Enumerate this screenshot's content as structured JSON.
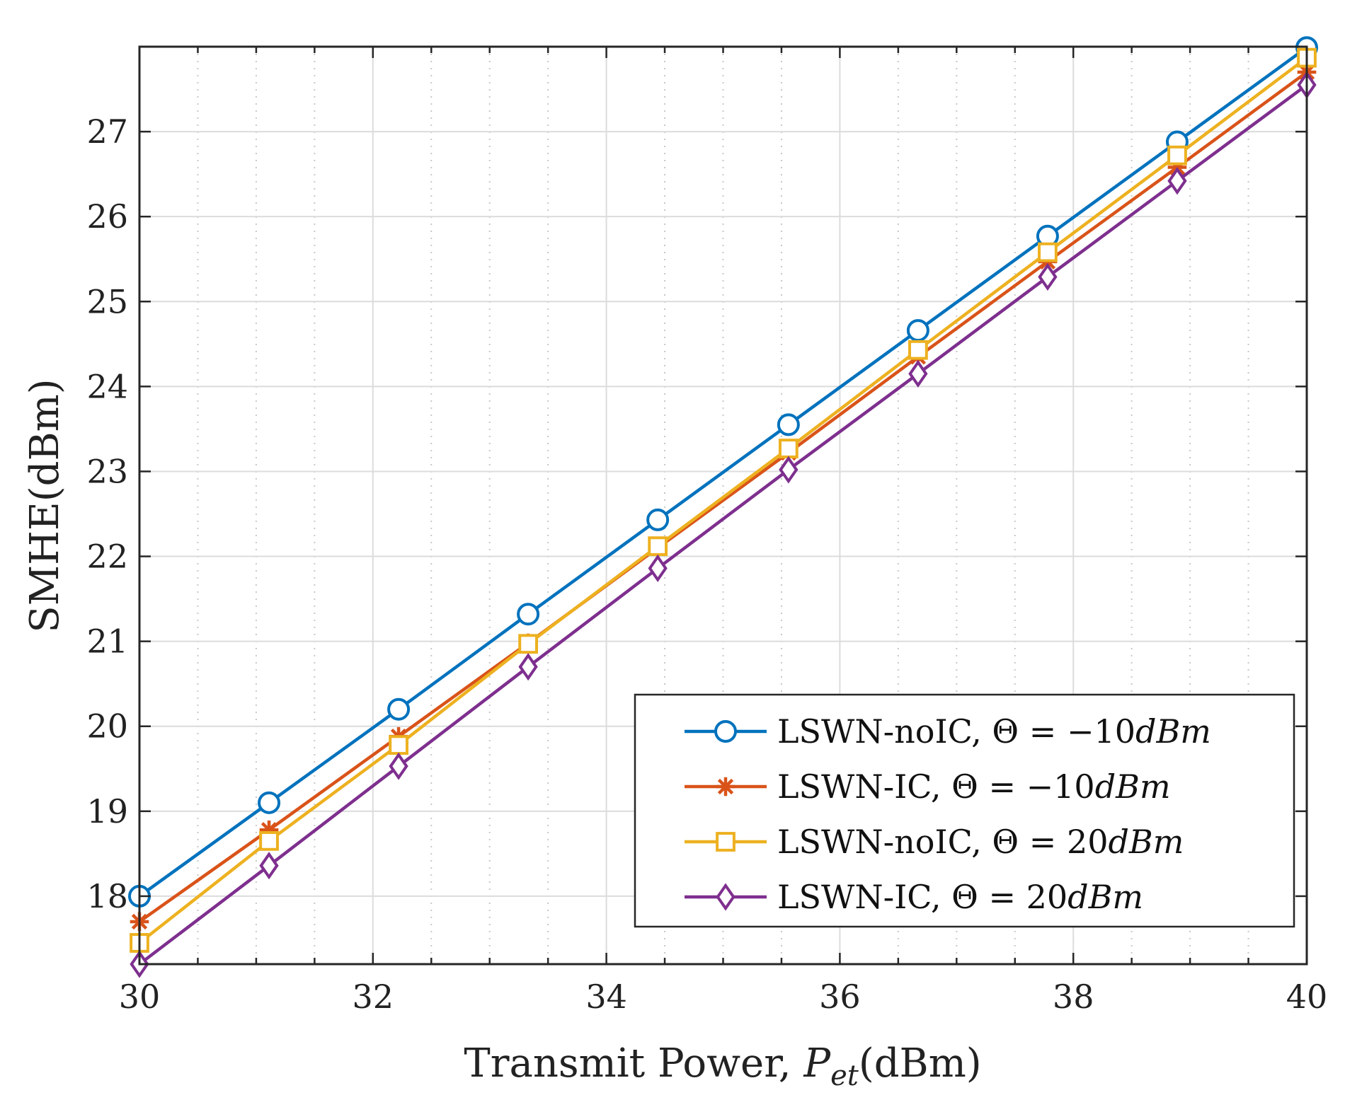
{
  "colors": {
    "grid_major": "#dcdcdc",
    "grid_minor": "#c8c8c8",
    "axis": "#262626"
  },
  "chart_data": {
    "type": "line",
    "title": "",
    "xlabel": {
      "prefix": "Transmit Power, ",
      "var": "P",
      "sub": "et",
      "suffix": "(dBm)"
    },
    "ylabel": "SMHE(dBm)",
    "xlim": [
      30,
      40
    ],
    "ylim": [
      17.2,
      28.0
    ],
    "xticks": [
      30,
      32,
      34,
      36,
      38,
      40
    ],
    "yticks": [
      18,
      19,
      20,
      21,
      22,
      23,
      24,
      25,
      26,
      27
    ],
    "x": [
      30,
      31.11,
      32.22,
      33.33,
      34.44,
      35.56,
      36.67,
      37.78,
      38.89,
      40
    ],
    "grid": true,
    "legend_position": "bottom-right",
    "series": [
      {
        "name": "LSWN-noIC",
        "theta": "−10",
        "marker": "circle",
        "color": "#0072BD",
        "values": [
          18.0,
          19.1,
          20.2,
          21.32,
          22.43,
          23.55,
          24.66,
          25.77,
          26.88,
          27.99
        ]
      },
      {
        "name": "LSWN-IC",
        "theta": "−10",
        "marker": "asterisk",
        "color": "#D95319",
        "values": [
          17.7,
          18.78,
          19.88,
          20.98,
          22.1,
          23.22,
          24.35,
          25.47,
          26.58,
          27.7
        ]
      },
      {
        "name": "LSWN-noIC",
        "theta": "20",
        "marker": "square",
        "color": "#EDB120",
        "values": [
          17.45,
          18.65,
          19.78,
          20.97,
          22.12,
          23.27,
          24.43,
          25.58,
          26.72,
          27.87
        ]
      },
      {
        "name": "LSWN-IC",
        "theta": "20",
        "marker": "diamond",
        "color": "#7E2F8E",
        "values": [
          17.2,
          18.36,
          19.53,
          20.7,
          21.86,
          23.02,
          24.15,
          25.29,
          26.42,
          27.55
        ]
      }
    ]
  }
}
